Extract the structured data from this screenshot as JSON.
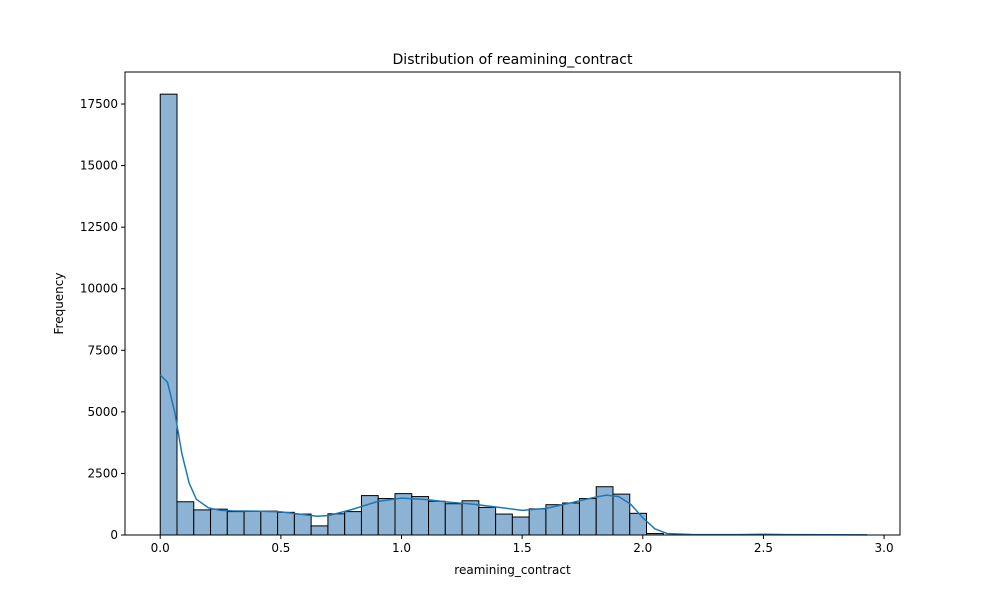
{
  "chart_data": {
    "type": "bar",
    "title": "Distribution of reamining_contract",
    "xlabel": "reamining_contract",
    "ylabel": "Frequency",
    "xlim": [
      -0.146,
      3.066
    ],
    "ylim": [
      0,
      18800
    ],
    "xticks": [
      0.0,
      0.5,
      1.0,
      1.5,
      2.0,
      2.5,
      3.0
    ],
    "xtick_labels": [
      "0.0",
      "0.5",
      "1.0",
      "1.5",
      "2.0",
      "2.5",
      "3.0"
    ],
    "yticks": [
      0,
      2500,
      5000,
      7500,
      10000,
      12500,
      15000,
      17500
    ],
    "ytick_labels": [
      "0",
      "2500",
      "5000",
      "7500",
      "10000",
      "12500",
      "15000",
      "17500"
    ],
    "grid": false,
    "bin_width": 0.0695,
    "bin_starts": [
      0.0,
      0.0695,
      0.139,
      0.2085,
      0.278,
      0.3475,
      0.417,
      0.4865,
      0.556,
      0.6255,
      0.695,
      0.7645,
      0.834,
      0.9035,
      0.973,
      1.0425,
      1.112,
      1.1815,
      1.251,
      1.3205,
      1.39,
      1.4595,
      1.529,
      1.5985,
      1.668,
      1.7375,
      1.807,
      1.8765,
      1.946,
      2.0155
    ],
    "values": [
      17900,
      1350,
      1020,
      1050,
      950,
      960,
      970,
      920,
      850,
      370,
      860,
      950,
      1600,
      1480,
      1680,
      1560,
      1370,
      1270,
      1390,
      1120,
      850,
      730,
      1060,
      1230,
      1300,
      1480,
      1960,
      1660,
      880,
      60
    ],
    "kde": {
      "x": [
        0.0,
        0.03,
        0.06,
        0.09,
        0.12,
        0.15,
        0.2,
        0.25,
        0.3,
        0.4,
        0.5,
        0.6,
        0.65,
        0.7,
        0.8,
        0.9,
        1.0,
        1.1,
        1.2,
        1.3,
        1.4,
        1.5,
        1.6,
        1.7,
        1.8,
        1.85,
        1.9,
        1.95,
        2.0,
        2.05,
        2.1,
        2.2,
        2.4,
        2.5,
        2.6,
        2.8,
        2.93
      ],
      "y": [
        6500,
        6200,
        5000,
        3300,
        2100,
        1450,
        1100,
        1000,
        980,
        970,
        940,
        820,
        760,
        790,
        1050,
        1360,
        1500,
        1440,
        1330,
        1250,
        1130,
        1000,
        1080,
        1300,
        1530,
        1620,
        1560,
        1250,
        700,
        250,
        60,
        20,
        15,
        30,
        15,
        10,
        5
      ]
    },
    "bar_color": "#8cb3d4",
    "kde_color": "#1f77b4"
  }
}
